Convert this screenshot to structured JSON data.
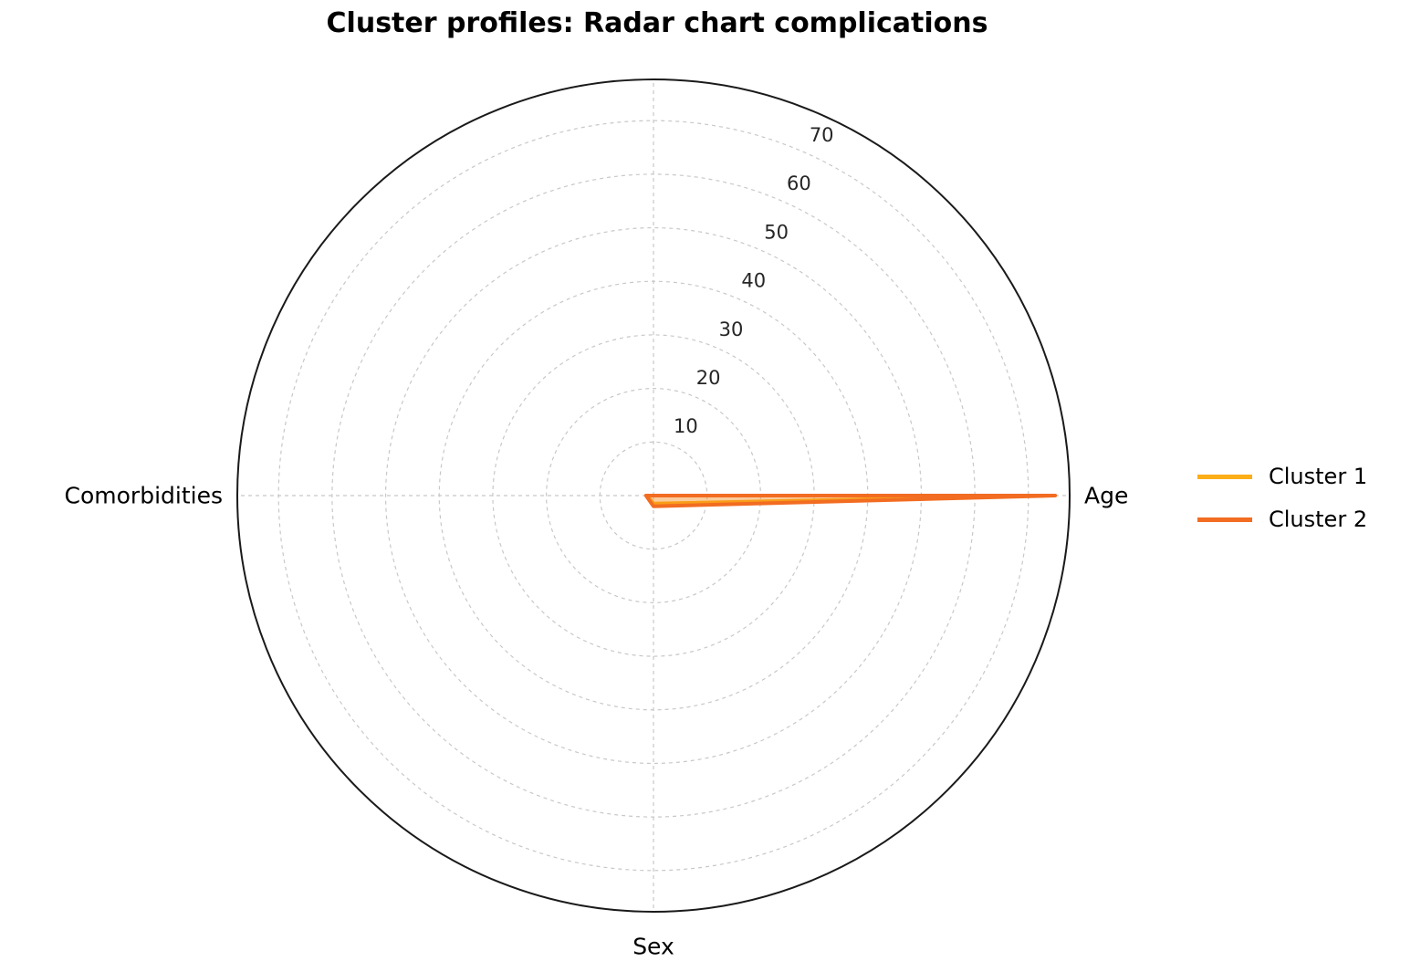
{
  "title": "Cluster profiles: Radar chart complications",
  "chart_data": {
    "type": "radar",
    "title": "Cluster profiles: Radar chart complications",
    "categories": [
      {
        "label": "Age",
        "angle_deg": 0
      },
      {
        "label": "Comorbidities",
        "angle_deg": 180
      },
      {
        "label": "Sex",
        "angle_deg": 270
      }
    ],
    "unlabeled_gridline_angles_deg": [
      90
    ],
    "radial_ticks": [
      10,
      20,
      30,
      40,
      50,
      60,
      70
    ],
    "rmax": 77.7,
    "rlabel_angle_deg": 65,
    "grid_style": "dashed",
    "grid_color": "#c8c8c8",
    "outline_color": "#1a1a1a",
    "series": [
      {
        "name": "Cluster 1",
        "color": "#FBAE17",
        "fill_opacity": 0.25,
        "values": {
          "Age": 73,
          "Comorbidities": 1.2,
          "Sex": 1.5
        }
      },
      {
        "name": "Cluster 2",
        "color": "#F26C21",
        "fill_opacity": 0.25,
        "values": {
          "Age": 75,
          "Comorbidities": 1.4,
          "Sex": 2.0
        }
      }
    ],
    "legend_position": "right of chart, no frame"
  }
}
